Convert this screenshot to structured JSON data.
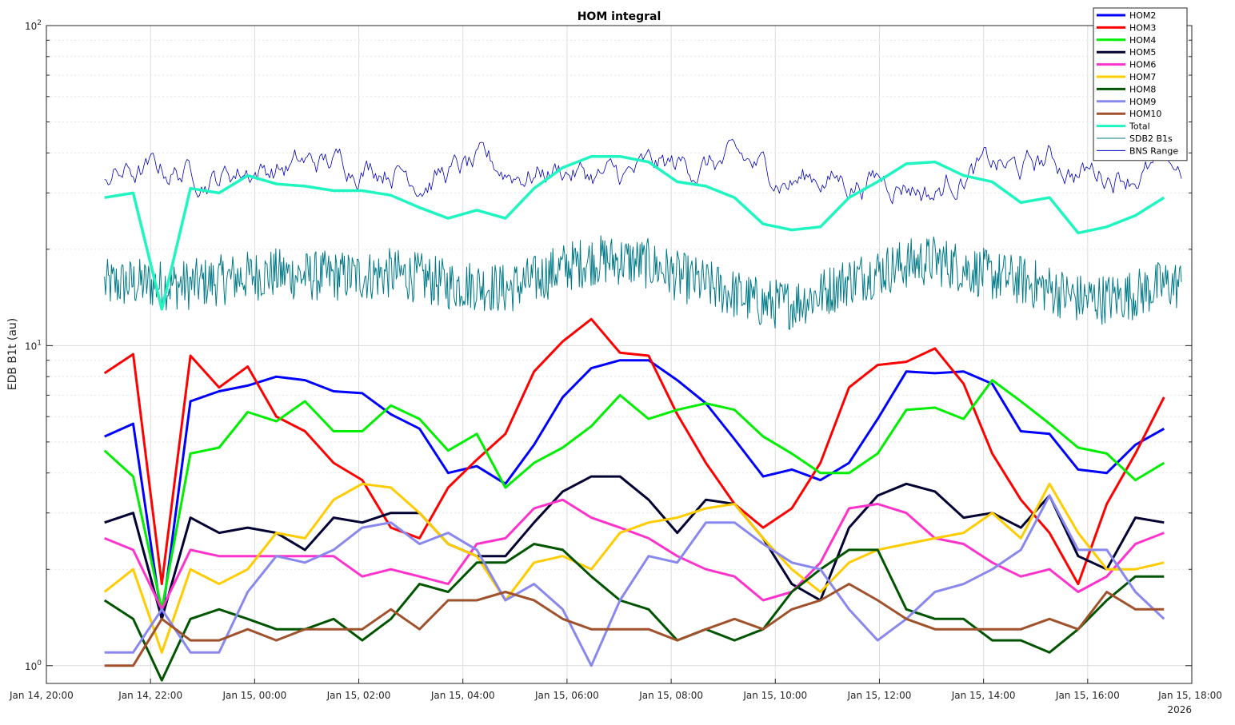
{
  "chart_data": {
    "type": "line",
    "title": "HOM integral",
    "xlabel": "",
    "ylabel": "EDB B1t (au)",
    "yscale": "log",
    "ylim": [
      0.88,
      100
    ],
    "xlim": [
      "2026-01-14T20:00",
      "2026-01-15T18:00"
    ],
    "y_ticks": [
      1,
      10,
      100
    ],
    "y_tick_labels": [
      {
        "base": "10",
        "exp": "0"
      },
      {
        "base": "10",
        "exp": "1"
      },
      {
        "base": "10",
        "exp": "2"
      }
    ],
    "x_ticks": [
      {
        "t": "2026-01-14T20:00",
        "label": "Jan 14, 20:00"
      },
      {
        "t": "2026-01-14T22:00",
        "label": "Jan 14, 22:00"
      },
      {
        "t": "2026-01-15T00:00",
        "label": "Jan 15, 00:00"
      },
      {
        "t": "2026-01-15T02:00",
        "label": "Jan 15, 02:00"
      },
      {
        "t": "2026-01-15T04:00",
        "label": "Jan 15, 04:00"
      },
      {
        "t": "2026-01-15T06:00",
        "label": "Jan 15, 06:00"
      },
      {
        "t": "2026-01-15T08:00",
        "label": "Jan 15, 08:00"
      },
      {
        "t": "2026-01-15T10:00",
        "label": "Jan 15, 10:00"
      },
      {
        "t": "2026-01-15T12:00",
        "label": "Jan 15, 12:00"
      },
      {
        "t": "2026-01-15T14:00",
        "label": "Jan 15, 14:00"
      },
      {
        "t": "2026-01-15T16:00",
        "label": "Jan 15, 16:00"
      },
      {
        "t": "2026-01-15T18:00",
        "label": "Jan 15, 18:00"
      }
    ],
    "x_year_label": "2026",
    "grid": true,
    "legend_position": "top-right",
    "x": [
      "2026-01-14T21:07",
      "2026-01-14T21:40",
      "2026-01-14T22:13",
      "2026-01-14T22:46",
      "2026-01-14T23:19",
      "2026-01-14T23:52",
      "2026-01-15T00:25",
      "2026-01-15T00:58",
      "2026-01-15T01:31",
      "2026-01-15T02:04",
      "2026-01-15T02:37",
      "2026-01-15T03:10",
      "2026-01-15T03:43",
      "2026-01-15T04:16",
      "2026-01-15T04:49",
      "2026-01-15T05:22",
      "2026-01-15T05:55",
      "2026-01-15T06:28",
      "2026-01-15T07:01",
      "2026-01-15T07:34",
      "2026-01-15T08:07",
      "2026-01-15T08:40",
      "2026-01-15T09:13",
      "2026-01-15T09:46",
      "2026-01-15T10:19",
      "2026-01-15T10:52",
      "2026-01-15T11:25",
      "2026-01-15T11:58",
      "2026-01-15T12:31",
      "2026-01-15T13:04",
      "2026-01-15T13:37",
      "2026-01-15T14:10",
      "2026-01-15T14:43",
      "2026-01-15T15:16",
      "2026-01-15T15:49",
      "2026-01-15T16:22",
      "2026-01-15T16:55",
      "2026-01-15T17:28"
    ],
    "series": [
      {
        "name": "HOM2",
        "color": "#0000ff",
        "width": 3,
        "values": [
          5.2,
          5.7,
          1.4,
          6.7,
          7.2,
          7.5,
          8.0,
          7.8,
          7.2,
          7.1,
          6.1,
          5.5,
          4.0,
          4.2,
          3.7,
          4.9,
          6.9,
          8.5,
          9.0,
          9.0,
          7.8,
          6.6,
          5.1,
          3.9,
          4.1,
          3.8,
          4.3,
          5.9,
          8.3,
          8.2,
          8.3,
          7.6,
          5.4,
          5.3,
          4.1,
          4.0,
          4.9,
          5.5
        ]
      },
      {
        "name": "HOM3",
        "color": "#ff0000",
        "width": 3,
        "values": [
          8.2,
          9.4,
          1.8,
          9.3,
          7.4,
          8.6,
          6.0,
          5.4,
          4.3,
          3.8,
          2.7,
          2.5,
          3.6,
          4.4,
          5.3,
          8.3,
          10.3,
          12.1,
          9.5,
          9.3,
          6.1,
          4.3,
          3.2,
          2.7,
          3.1,
          4.3,
          7.4,
          8.7,
          8.9,
          9.8,
          7.6,
          4.6,
          3.3,
          2.6,
          1.8,
          3.2,
          4.6,
          6.9
        ]
      },
      {
        "name": "HOM4",
        "color": "#00ee00",
        "width": 3,
        "values": [
          4.7,
          3.9,
          1.5,
          4.6,
          4.8,
          6.2,
          5.8,
          6.7,
          5.4,
          5.4,
          6.5,
          5.9,
          4.7,
          5.3,
          3.6,
          4.3,
          4.8,
          5.6,
          7.0,
          5.9,
          6.3,
          6.6,
          6.3,
          5.2,
          4.6,
          4.0,
          4.0,
          4.6,
          6.3,
          6.4,
          5.9,
          7.8,
          6.7,
          5.7,
          4.8,
          4.6,
          3.8,
          4.3
        ]
      },
      {
        "name": "HOM5",
        "color": "#000033",
        "width": 3,
        "values": [
          2.8,
          3.0,
          1.4,
          2.9,
          2.6,
          2.7,
          2.6,
          2.3,
          2.9,
          2.8,
          3.0,
          3.0,
          2.4,
          2.2,
          2.2,
          2.8,
          3.5,
          3.9,
          3.9,
          3.3,
          2.6,
          3.3,
          3.2,
          2.5,
          1.8,
          1.6,
          2.7,
          3.4,
          3.7,
          3.5,
          2.9,
          3.0,
          2.7,
          3.4,
          2.2,
          2.0,
          2.9,
          2.8
        ]
      },
      {
        "name": "HOM6",
        "color": "#ff33cc",
        "width": 3,
        "values": [
          2.5,
          2.3,
          1.5,
          2.3,
          2.2,
          2.2,
          2.2,
          2.2,
          2.2,
          1.9,
          2.0,
          1.9,
          1.8,
          2.4,
          2.5,
          3.1,
          3.3,
          2.9,
          2.7,
          2.5,
          2.2,
          2.0,
          1.9,
          1.6,
          1.7,
          2.1,
          3.1,
          3.2,
          3.0,
          2.5,
          2.4,
          2.1,
          1.9,
          2.0,
          1.7,
          1.9,
          2.4,
          2.6
        ]
      },
      {
        "name": "HOM7",
        "color": "#ffcc00",
        "width": 3,
        "values": [
          1.7,
          2.0,
          1.1,
          2.0,
          1.8,
          2.0,
          2.6,
          2.5,
          3.3,
          3.7,
          3.6,
          3.0,
          2.4,
          2.2,
          1.6,
          2.1,
          2.2,
          2.0,
          2.6,
          2.8,
          2.9,
          3.1,
          3.2,
          2.5,
          2.0,
          1.7,
          2.1,
          2.3,
          2.4,
          2.5,
          2.6,
          3.0,
          2.5,
          3.7,
          2.6,
          2.0,
          2.0,
          2.1
        ]
      },
      {
        "name": "HOM8",
        "color": "#005500",
        "width": 3,
        "values": [
          1.6,
          1.4,
          0.9,
          1.4,
          1.5,
          1.4,
          1.3,
          1.3,
          1.4,
          1.2,
          1.4,
          1.8,
          1.7,
          2.1,
          2.1,
          2.4,
          2.3,
          1.9,
          1.6,
          1.5,
          1.2,
          1.3,
          1.2,
          1.3,
          1.7,
          2.0,
          2.3,
          2.3,
          1.5,
          1.4,
          1.4,
          1.2,
          1.2,
          1.1,
          1.3,
          1.6,
          1.9,
          1.9
        ]
      },
      {
        "name": "HOM9",
        "color": "#8888ee",
        "width": 3,
        "values": [
          1.1,
          1.1,
          1.5,
          1.1,
          1.1,
          1.7,
          2.2,
          2.1,
          2.3,
          2.7,
          2.8,
          2.4,
          2.6,
          2.3,
          1.6,
          1.8,
          1.5,
          1.0,
          1.6,
          2.2,
          2.1,
          2.8,
          2.8,
          2.4,
          2.1,
          2.0,
          1.5,
          1.2,
          1.4,
          1.7,
          1.8,
          2.0,
          2.3,
          3.4,
          2.3,
          2.3,
          1.7,
          1.4
        ]
      },
      {
        "name": "HOM10",
        "color": "#a0522d",
        "width": 3,
        "values": [
          1.0,
          1.0,
          1.4,
          1.2,
          1.2,
          1.3,
          1.2,
          1.3,
          1.3,
          1.3,
          1.5,
          1.3,
          1.6,
          1.6,
          1.7,
          1.6,
          1.4,
          1.3,
          1.3,
          1.3,
          1.2,
          1.3,
          1.4,
          1.3,
          1.5,
          1.6,
          1.8,
          1.6,
          1.4,
          1.3,
          1.3,
          1.3,
          1.3,
          1.4,
          1.3,
          1.7,
          1.5,
          1.5
        ]
      },
      {
        "name": "Total",
        "color": "#1ff5c0",
        "width": 3.5,
        "values": [
          29,
          30,
          13,
          31,
          30,
          34,
          32,
          31.5,
          30.5,
          30.5,
          29.5,
          27,
          25,
          26.5,
          25,
          31,
          36,
          39,
          39,
          37.5,
          32.5,
          31.5,
          29,
          24,
          23,
          23.5,
          29,
          32.5,
          37,
          37.5,
          34,
          32.5,
          28,
          29,
          22.5,
          23.5,
          25.5,
          29
        ]
      },
      {
        "name": "SDB2 B1s",
        "color": "#007a88",
        "width": 1,
        "noise": true,
        "dense": 1100,
        "values": [
          15.5,
          15.7,
          15.5,
          15.5,
          16.0,
          16.5,
          16.8,
          16.5,
          16.5,
          16.5,
          16.8,
          16.3,
          15.5,
          15.5,
          15.0,
          16.0,
          17.5,
          18.5,
          18.5,
          18.0,
          16.5,
          15.5,
          14.5,
          13.5,
          13.5,
          14.5,
          16.0,
          17.0,
          18.0,
          18.5,
          17.5,
          16.5,
          16.0,
          15.0,
          14.0,
          14.0,
          14.5,
          15.5
        ]
      },
      {
        "name": "BNS Range",
        "color": "#0000bb",
        "width": 0.8,
        "noise": true,
        "dense": 600,
        "values": [
          35,
          34.5,
          35,
          35,
          34,
          36,
          36,
          36.5,
          37,
          37.5,
          37,
          34,
          35,
          35.5,
          35,
          35,
          36,
          34,
          33,
          35,
          36,
          37,
          37,
          35,
          33,
          34,
          32.5,
          33.5,
          33,
          30,
          35,
          36,
          35,
          38,
          35,
          35,
          35.5,
          35
        ]
      }
    ]
  }
}
